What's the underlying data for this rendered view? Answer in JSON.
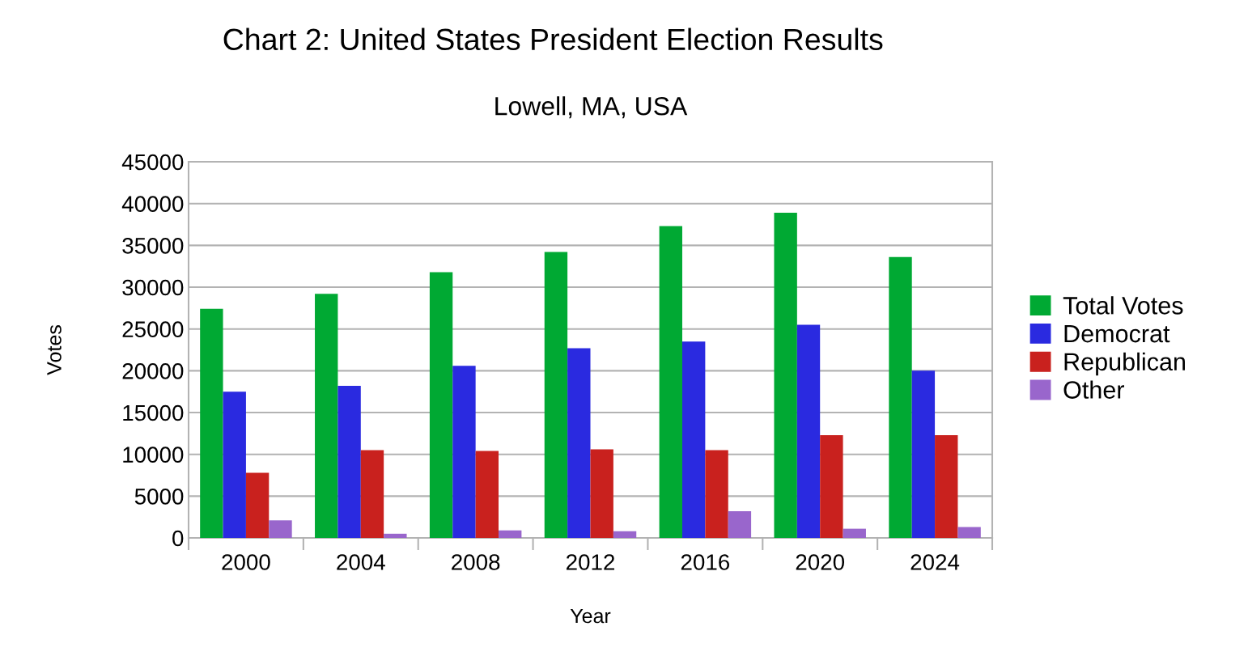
{
  "chart_data": {
    "type": "bar",
    "title": "Chart 2: United States President Election Results",
    "subtitle": "Lowell, MA, USA",
    "xlabel": "Year",
    "ylabel": "Votes",
    "categories": [
      "2000",
      "2004",
      "2008",
      "2012",
      "2016",
      "2020",
      "2024"
    ],
    "series": [
      {
        "name": "Total Votes",
        "color": "#00a933",
        "values": [
          27400,
          29200,
          31800,
          34200,
          37300,
          38900,
          33600
        ]
      },
      {
        "name": "Democrat",
        "color": "#2a2ae0",
        "values": [
          17500,
          18200,
          20600,
          22700,
          23500,
          25500,
          20000
        ]
      },
      {
        "name": "Republican",
        "color": "#c9211e",
        "values": [
          7800,
          10500,
          10400,
          10600,
          10500,
          12300,
          12300
        ]
      },
      {
        "name": "Other",
        "color": "#9966cc",
        "values": [
          2100,
          500,
          900,
          800,
          3200,
          1100,
          1300
        ]
      }
    ],
    "ylim": [
      0,
      45000
    ],
    "yticks": [
      0,
      5000,
      10000,
      15000,
      20000,
      25000,
      30000,
      35000,
      40000,
      45000
    ],
    "grid": "y",
    "legend": "right"
  }
}
